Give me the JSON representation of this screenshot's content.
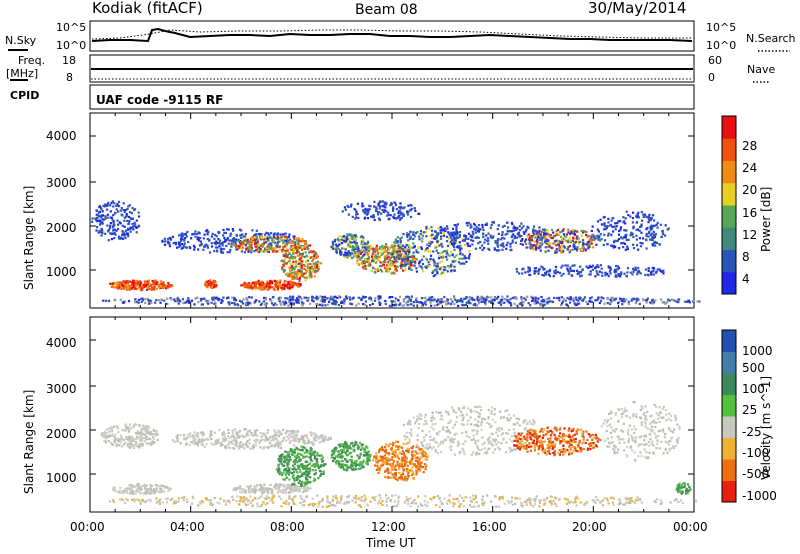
{
  "header": {
    "station": "Kodiak (fitACF)",
    "beam": "Beam 08",
    "date": "30/May/2014"
  },
  "top_panels": {
    "nsky_label": "N.Sky",
    "nsky_ticks": [
      "10^5",
      "10^0"
    ],
    "nsearch_label": "N.Search",
    "nsearch_ticks": [
      "10^5",
      "10^0"
    ],
    "freq_label": "Freq.",
    "freq_unit": "[MHz]",
    "freq_ticks": [
      "18",
      "8"
    ],
    "nave_label": "Nave",
    "nave_ticks": [
      "60",
      "0"
    ],
    "cpid_label": "CPID",
    "cpid_text": "UAF code -9115 RF"
  },
  "chart_data": [
    {
      "type": "heatmap",
      "name": "power-panel",
      "ylabel": "Slant Range [km]",
      "yticks": [
        "4000",
        "3000",
        "2000",
        "1000"
      ],
      "ylim": [
        200,
        4600
      ],
      "colorbar_label": "Power [dB]",
      "colorbar_ticks": [
        "28",
        "24",
        "20",
        "16",
        "12",
        "8",
        "4"
      ],
      "colors": [
        "#2028e8",
        "#2a55b8",
        "#3f8a7a",
        "#55a855",
        "#e8d020",
        "#f08a10",
        "#f05010",
        "#e81010"
      ]
    },
    {
      "type": "heatmap",
      "name": "velocity-panel",
      "ylabel": "Slant Range [km]",
      "yticks": [
        "4000",
        "3000",
        "2000",
        "1000"
      ],
      "ylim": [
        200,
        4600
      ],
      "colorbar_label": "Velocity [m s^-1]",
      "colorbar_ticks": [
        "1000",
        "500",
        "100",
        "25",
        "-25",
        "-100",
        "-500",
        "-1000"
      ],
      "colors": [
        "#2050b0",
        "#3f7fa8",
        "#3c8a5a",
        "#55c040",
        "#c8c8c0",
        "#f0b030",
        "#f07010",
        "#e82010"
      ]
    }
  ],
  "x_axis": {
    "label": "Time UT",
    "ticks": [
      "00:00",
      "04:00",
      "08:00",
      "12:00",
      "16:00",
      "20:00",
      "00:00"
    ]
  }
}
